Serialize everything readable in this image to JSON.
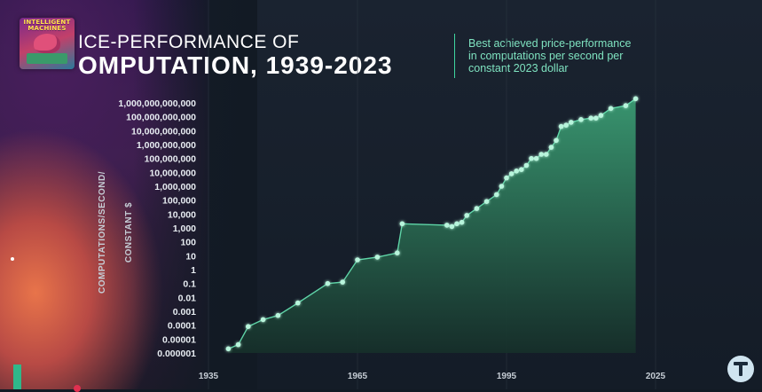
{
  "header": {
    "logo_text": "INTELLIGENT MACHINES",
    "title_line1": "ICE-PERFORMANCE OF",
    "title_line2": "OMPUTATION, 1939-2023",
    "subtitle_lines": [
      "Best achieved price-performance",
      "in computations per second per",
      "constant 2023 dollar"
    ]
  },
  "colors": {
    "accent": "#3fd6a0",
    "line": "#66e6b4",
    "area_top": "#3a9a72",
    "area_bottom": "#16302a",
    "point": "#b8f5dc"
  },
  "brand_icon": "teal-t-logo-icon",
  "chart_data": {
    "type": "area",
    "title": "",
    "xlabel": "",
    "ylabel": "COMPUTATIONS/SECOND/ CONSTANT $",
    "ylabel_lines": [
      "COMPUTATIONS/SECOND/",
      "CONSTANT $"
    ],
    "y_scale": "log10",
    "y_tick_labels": [
      "1,000,000,000,000",
      "100,000,000,000",
      "10,000,000,000",
      "1,000,000,000",
      "100,000,000",
      "10,000,000",
      "1,000,000",
      "100,000",
      "10,000",
      "1,000",
      "100",
      "10",
      "1",
      "0.1",
      "0.01",
      "0.001",
      "0.0001",
      "0.00001",
      "0.000001"
    ],
    "y_tick_exponents": [
      12,
      11,
      10,
      9,
      8,
      7,
      6,
      5,
      4,
      3,
      2,
      1,
      0,
      -1,
      -2,
      -3,
      -4,
      -5,
      -6
    ],
    "ylim_exponent": [
      -6.3,
      12.3
    ],
    "x_tick_labels": [
      "1935",
      "1965",
      "1995",
      "2025"
    ],
    "x_tick_values": [
      1935,
      1965,
      1995,
      2025
    ],
    "xlim": [
      1935,
      2050
    ],
    "grid": false,
    "grid_x": true,
    "series": [
      {
        "x": [
          1939,
          1941,
          1943,
          1946,
          1949,
          1953,
          1959,
          1962,
          1965,
          1969,
          1973,
          1974,
          1983,
          1984,
          1985,
          1986,
          1987,
          1989,
          1991,
          1993,
          1994,
          1995,
          1996,
          1997,
          1998,
          1999,
          2000,
          2001,
          2002,
          2003,
          2004,
          2005,
          2006,
          2007,
          2008,
          2010,
          2012,
          2013,
          2014,
          2016,
          2019,
          2021
        ],
        "log_values": [
          -5.7,
          -5.4,
          -4.1,
          -3.6,
          -3.3,
          -2.4,
          -1.0,
          -0.9,
          0.7,
          0.9,
          1.2,
          3.3,
          3.2,
          3.1,
          3.3,
          3.4,
          3.9,
          4.4,
          4.9,
          5.4,
          6.0,
          6.6,
          6.9,
          7.1,
          7.2,
          7.5,
          8.0,
          8.0,
          8.3,
          8.3,
          8.8,
          9.3,
          10.3,
          10.4,
          10.6,
          10.8,
          10.9,
          10.9,
          11.1,
          11.6,
          11.8,
          12.3
        ]
      }
    ]
  }
}
